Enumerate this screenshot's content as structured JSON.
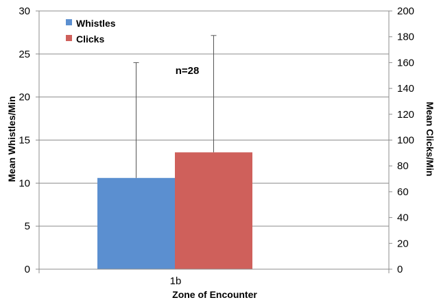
{
  "chart_data": {
    "type": "bar",
    "categories": [
      "1b"
    ],
    "xlabel": "Zone of Encounter",
    "series": [
      {
        "name": "Whistles",
        "axis": "left",
        "color": "#5b8fd0",
        "values": [
          10.6
        ],
        "error_upper": [
          24
        ]
      },
      {
        "name": "Clicks",
        "axis": "right",
        "color": "#cf605b",
        "values": [
          90.5
        ],
        "error_upper": [
          181
        ]
      }
    ],
    "y_left": {
      "label": "Mean Whistles/Min",
      "ylim": [
        0,
        30
      ],
      "ticks": [
        "0",
        "5",
        "10",
        "15",
        "20",
        "25",
        "30"
      ]
    },
    "y_right": {
      "label": "Mean Clicks/Min",
      "ylim": [
        0,
        200
      ],
      "ticks": [
        "0",
        "20",
        "40",
        "60",
        "80",
        "100",
        "120",
        "140",
        "160",
        "180",
        "200"
      ]
    },
    "annotation": "n=28",
    "grid": true,
    "legend_position": "top-left"
  }
}
